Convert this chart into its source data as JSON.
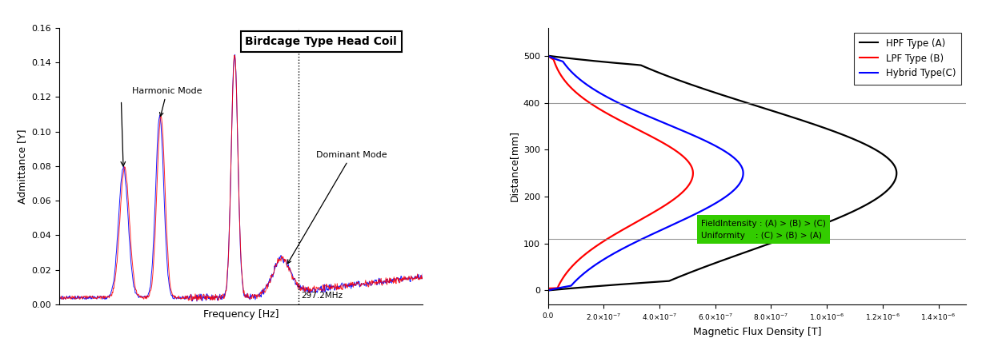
{
  "left_title": "Birdcage Type Head Coil",
  "left_xlabel": "Frequency [Hz]",
  "left_ylabel": "Admittance [Y]",
  "left_ylim": [
    0.0,
    0.16
  ],
  "left_yticks": [
    0.0,
    0.02,
    0.04,
    0.06,
    0.08,
    0.1,
    0.12,
    0.14,
    0.16
  ],
  "harmonic_label": "Harmonic Mode",
  "dominant_label": "Dominant Mode",
  "dominant_freq_label": "297.2MHz",
  "right_xlabel": "Magnetic Flux Density [T]",
  "right_ylabel": "Distance[mm]",
  "right_ylim": [
    -30,
    560
  ],
  "right_yticks": [
    0,
    100,
    200,
    300,
    400,
    500
  ],
  "right_hlines": [
    110,
    400
  ],
  "legend_entries": [
    "HPF Type (A)",
    "LPF Type (B)",
    "Hybrid Type(C)"
  ],
  "legend_colors": [
    "black",
    "red",
    "blue"
  ],
  "green_box_text1": "FieldIntensity : (A) > (B) > (C)",
  "green_box_text2": "Uniformity    : (C) > (B) > (A)",
  "green_box_color": "#33cc00",
  "bg_color": "#ffffff"
}
